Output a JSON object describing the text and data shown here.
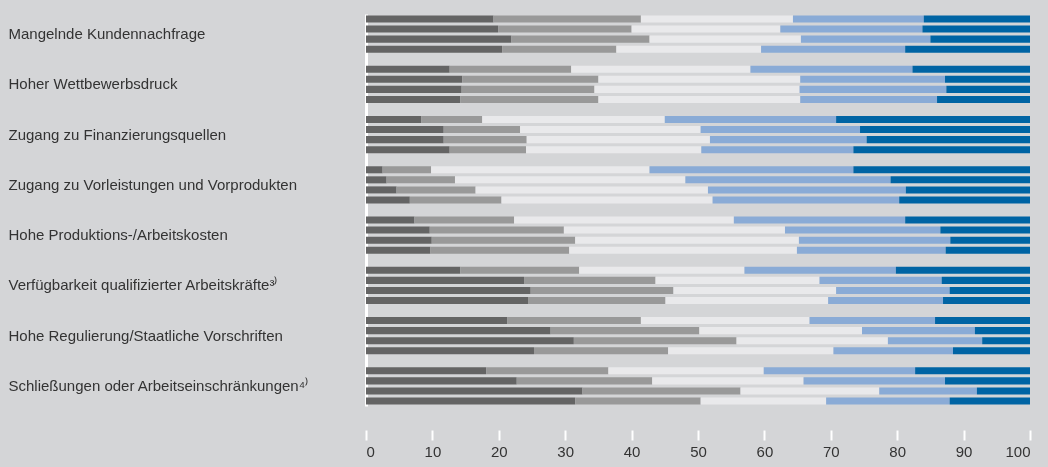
{
  "chart_data": {
    "type": "bar",
    "orientation": "horizontal",
    "stacked": true,
    "categories": [
      null,
      "Mangelnde Kundennachfrage",
      null,
      null,
      null,
      null,
      "Hoher Wettbewerbsdruck",
      null,
      null,
      null,
      null,
      "Zugang zu Finanzierungsquellen",
      null,
      null,
      null,
      null,
      "Zugang zu Vorleistungen und Vorprodukten",
      null,
      null,
      null,
      null,
      "Hohe Produktions-/Arbeitskosten",
      null,
      null,
      null,
      null,
      "Verfügbarkeit qualifizierter Arbeitskräfte³⁾",
      null,
      null,
      null,
      null,
      "Hohe Regulierung/Staatliche Vorschriften",
      null,
      null,
      null,
      null,
      "Schließungen oder Arbeitseinschränkungen⁴⁾",
      null,
      null
    ],
    "series": [
      {
        "color": "#646464",
        "values": [
          19.2,
          19.9,
          21.9,
          20.5,
          null,
          12.6,
          14.5,
          14.4,
          14.2,
          null,
          8.3,
          11.7,
          11.7,
          12.6,
          null,
          2.5,
          3.1,
          4.6,
          6.6,
          null,
          7.3,
          9.6,
          9.9,
          9.7,
          null,
          14.2,
          23.8,
          24.8,
          24.4,
          null,
          21.3,
          27.8,
          31.3,
          25.3,
          null,
          18.1,
          22.7,
          32.6,
          31.5
        ]
      },
      {
        "color": "#999999",
        "values": [
          22.2,
          20.1,
          20.8,
          17.2,
          null,
          18.3,
          20.5,
          20.0,
          20.8,
          null,
          9.2,
          11.5,
          12.5,
          11.5,
          null,
          7.3,
          10.3,
          11.9,
          13.8,
          null,
          15.0,
          20.2,
          21.6,
          20.9,
          null,
          17.9,
          19.8,
          21.5,
          20.7,
          null,
          20.1,
          22.4,
          24.5,
          20.2,
          null,
          18.4,
          20.4,
          23.8,
          18.9
        ]
      },
      {
        "color": "#e9e9eb",
        "values": [
          22.9,
          22.4,
          22.8,
          21.8,
          null,
          27.0,
          30.4,
          30.9,
          30.4,
          null,
          27.5,
          27.2,
          27.6,
          26.4,
          null,
          32.9,
          34.7,
          35.0,
          31.8,
          null,
          33.1,
          33.3,
          33.7,
          34.3,
          null,
          24.9,
          24.7,
          24.5,
          24.5,
          null,
          25.4,
          24.5,
          22.8,
          24.9,
          null,
          23.4,
          22.8,
          20.9,
          18.9
        ]
      },
      {
        "color": "#8aabd6",
        "values": [
          19.7,
          21.4,
          19.5,
          21.7,
          null,
          24.4,
          21.8,
          22.1,
          20.6,
          null,
          25.8,
          24.0,
          23.6,
          22.9,
          null,
          30.7,
          30.9,
          29.8,
          28.1,
          null,
          25.8,
          23.4,
          22.8,
          22.4,
          null,
          22.8,
          18.4,
          17.1,
          17.3,
          null,
          18.9,
          17.0,
          14.2,
          18.0,
          null,
          22.8,
          21.3,
          14.7,
          18.6
        ]
      },
      {
        "color": "#0064a4",
        "values": [
          16.0,
          16.2,
          15.0,
          18.8,
          null,
          17.7,
          12.8,
          12.6,
          14.0,
          null,
          29.2,
          25.6,
          24.6,
          26.6,
          null,
          26.6,
          21.0,
          18.7,
          19.7,
          null,
          18.8,
          13.5,
          12.0,
          12.7,
          null,
          20.2,
          13.3,
          12.1,
          13.1,
          null,
          14.3,
          8.3,
          7.2,
          11.6,
          null,
          17.3,
          12.8,
          8.0,
          12.1
        ]
      }
    ],
    "xlim": [
      0,
      100
    ],
    "xticks": [
      0,
      10,
      20,
      30,
      40,
      50,
      60,
      70,
      80,
      90,
      100
    ]
  }
}
